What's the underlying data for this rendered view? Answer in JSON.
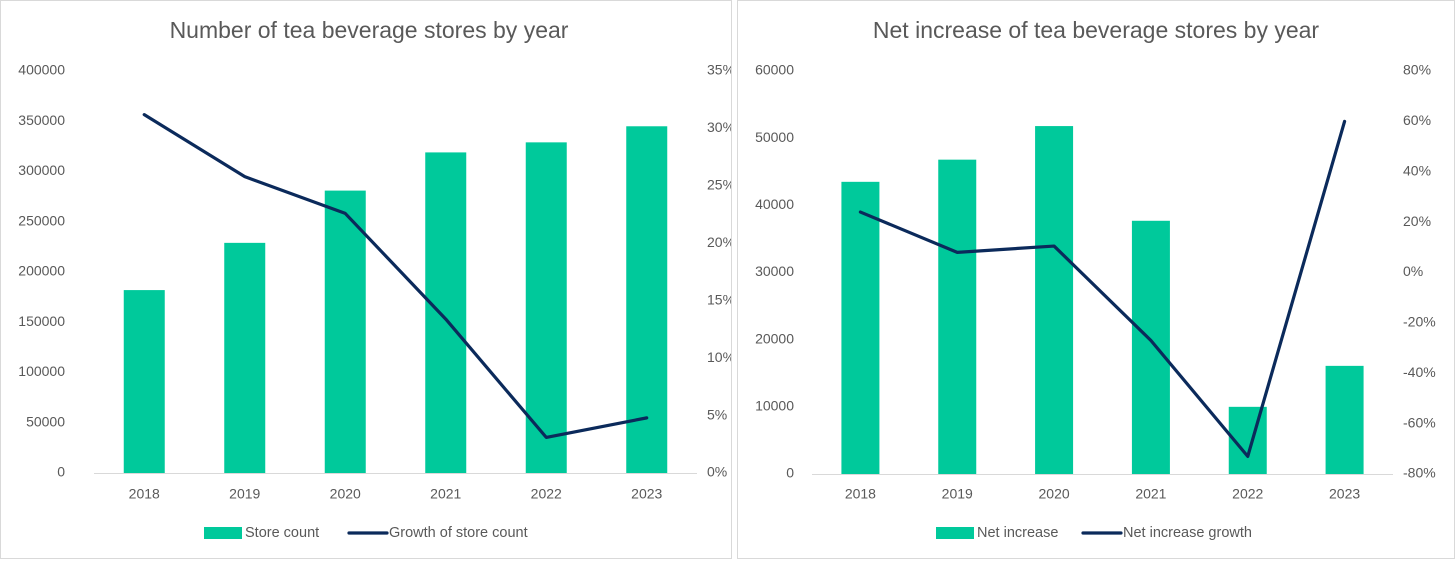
{
  "chart_data": [
    {
      "type": "bar",
      "title": "Number of tea beverage stores by year",
      "categories": [
        "2018",
        "2019",
        "2020",
        "2021",
        "2022",
        "2023"
      ],
      "y_ticks": [
        "0",
        "50000",
        "100000",
        "150000",
        "200000",
        "250000",
        "300000",
        "350000",
        "400000"
      ],
      "y2_ticks": [
        "0%",
        "5%",
        "10%",
        "15%",
        "20%",
        "25%",
        "30%",
        "35%"
      ],
      "ylim": [
        0,
        400000
      ],
      "y2lim": [
        0,
        35
      ],
      "grid": false,
      "legend_position": "bottom",
      "series": [
        {
          "name": "Store count",
          "type": "bar",
          "axis": "left",
          "color": "#00c99b",
          "values": [
            182000,
            229000,
            281000,
            319000,
            329000,
            345000
          ]
        },
        {
          "name": "Growth of store count",
          "type": "line",
          "axis": "right",
          "color": "#0b2a5b",
          "values": [
            31.2,
            25.8,
            22.6,
            13.4,
            3.1,
            4.8
          ]
        }
      ]
    },
    {
      "type": "bar",
      "title": "Net increase of tea beverage stores by year",
      "categories": [
        "2018",
        "2019",
        "2020",
        "2021",
        "2022",
        "2023"
      ],
      "y_ticks": [
        "0",
        "10000",
        "20000",
        "30000",
        "40000",
        "50000",
        "60000"
      ],
      "y2_ticks": [
        "-80%",
        "-60%",
        "-40%",
        "-20%",
        "0%",
        "20%",
        "40%",
        "60%",
        "80%"
      ],
      "ylim": [
        0,
        60000
      ],
      "y2lim": [
        -80,
        80
      ],
      "grid": false,
      "legend_position": "bottom",
      "series": [
        {
          "name": "Net increase",
          "type": "bar",
          "axis": "left",
          "color": "#00c99b",
          "values": [
            43500,
            46800,
            51800,
            37700,
            10000,
            16100
          ]
        },
        {
          "name": "Net increase growth",
          "type": "line",
          "axis": "right",
          "color": "#0b2a5b",
          "values": [
            24,
            8,
            10.5,
            -27,
            -73,
            60
          ]
        }
      ]
    }
  ]
}
